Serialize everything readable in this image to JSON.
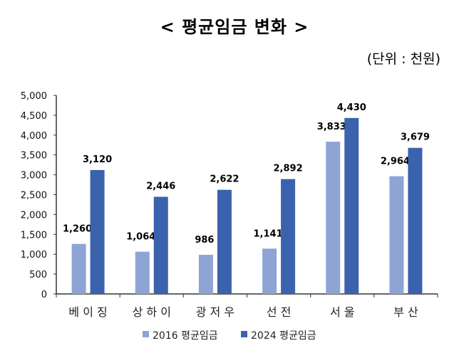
{
  "chart_data": {
    "type": "bar",
    "title": "< 평균임금 변화 >",
    "unit_note": "(단위 : 천원)",
    "categories": [
      "베 이 징",
      "상 하 이",
      "광 저 우",
      "선 전",
      "서 울",
      "부 산"
    ],
    "series": [
      {
        "name": "2016 평균임금",
        "color": "#8EA4D5",
        "values": [
          1260,
          1064,
          986,
          1141,
          3833,
          2964
        ]
      },
      {
        "name": "2024 평균임금",
        "color": "#3A62AD",
        "values": [
          3120,
          2446,
          2622,
          2892,
          4430,
          3679
        ]
      }
    ],
    "data_labels": [
      [
        "1,260",
        "1,064",
        "986",
        "1,141",
        "3,833",
        "2,964"
      ],
      [
        "3,120",
        "2,446",
        "2,622",
        "2,892",
        "4,430",
        "3,679"
      ]
    ],
    "yticks": [
      "0",
      "500",
      "1,000",
      "1,500",
      "2,000",
      "2,500",
      "3,000",
      "3,500",
      "4,000",
      "4,500",
      "5,000"
    ],
    "ylim": [
      0,
      5000
    ],
    "grid": false,
    "legend": "bottom"
  }
}
